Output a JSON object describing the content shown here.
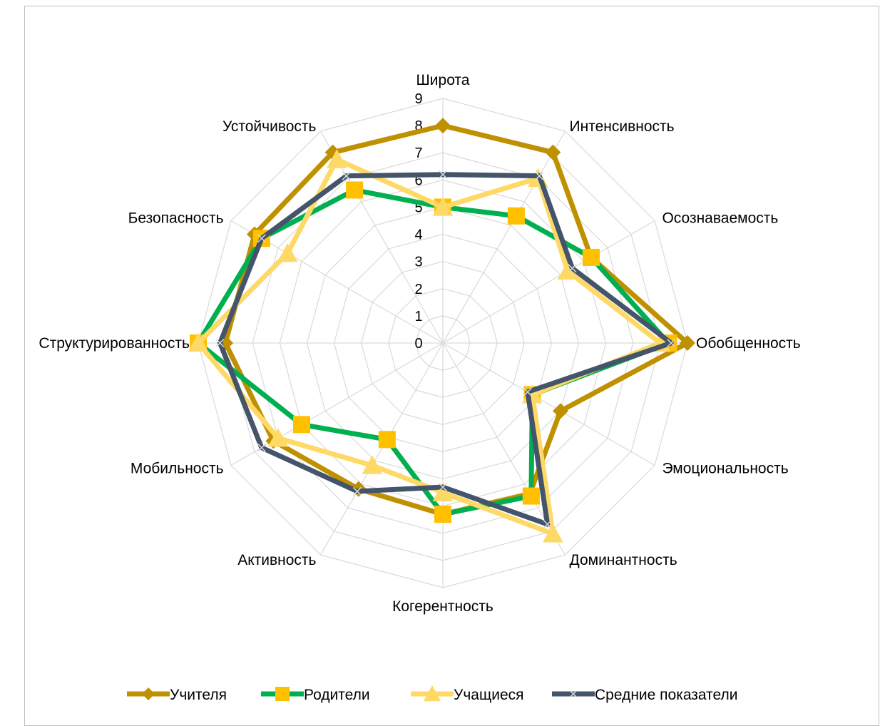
{
  "chart_data": {
    "type": "radar",
    "categories": [
      "Широта",
      "Интенсивность",
      "Осознаваемость",
      "Обобщенность",
      "Эмоциональность",
      "Доминантность",
      "Когерентность",
      "Активность",
      "Мобильность",
      "Структурированность",
      "Безопасность",
      "Устойчивость"
    ],
    "rlim": [
      0,
      9
    ],
    "ticks": [
      "0",
      "1",
      "2",
      "3",
      "4",
      "5",
      "6",
      "7",
      "8",
      "9"
    ],
    "grid": true,
    "legend_position": "bottom",
    "series": [
      {
        "name": "Учителя",
        "color": "#BF9000",
        "marker": "diamond",
        "values": [
          8,
          8.1,
          6.3,
          9,
          5,
          6.4,
          6.3,
          6.2,
          7.2,
          8,
          8,
          8.1
        ]
      },
      {
        "name": "Родители",
        "color": "#00B050",
        "marker": "square",
        "values": [
          5,
          5.4,
          6.3,
          8.3,
          3.8,
          6.5,
          6.3,
          4.1,
          6,
          9,
          7.7,
          6.5
        ]
      },
      {
        "name": "Учащиеся",
        "color": "#FFD966",
        "marker": "triangle",
        "values": [
          5,
          7,
          5.3,
          8,
          3.8,
          8.1,
          5.5,
          5.2,
          7,
          9,
          6.6,
          7.8
        ]
      },
      {
        "name": "Средние показатели",
        "color": "#44546A",
        "marker": "x",
        "values": [
          6.2,
          7.1,
          5.5,
          8.4,
          3.6,
          7.7,
          5.3,
          6.3,
          7.7,
          8.2,
          7.7,
          7.1
        ]
      }
    ]
  }
}
